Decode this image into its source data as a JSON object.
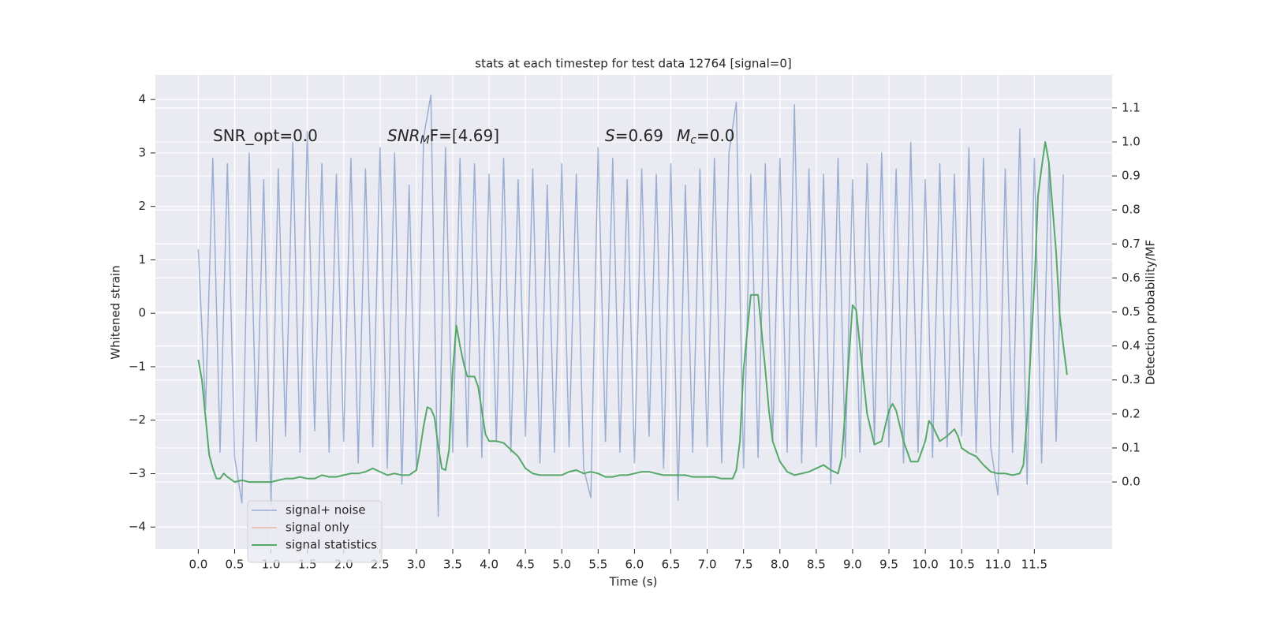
{
  "chart_data": {
    "type": "line",
    "title": "stats at each timestep for test data 12764 [signal=0]",
    "xlabel": "Time (s)",
    "ylabel": "Whitened strain",
    "y2label": "Detection probability/MF",
    "annotations": [
      {
        "parts": [
          "SNR_opt=0.0"
        ]
      },
      {
        "parts": [
          "SNR",
          "M",
          "F=[4.69]"
        ]
      },
      {
        "parts": [
          "S",
          "=0.69",
          "M",
          "c",
          "=0.0"
        ]
      }
    ],
    "xlim": [
      -0.59,
      12.57
    ],
    "ylim": [
      -4.41,
      4.46
    ],
    "y2lim": [
      -0.197,
      1.197
    ],
    "xticks": [
      {
        "value": 0,
        "label": "0.0"
      },
      0.5,
      {
        "value": 1,
        "label": "1.0"
      },
      1.5,
      {
        "value": 2,
        "label": "2.0"
      },
      2.5,
      {
        "value": 3,
        "label": "3.0"
      },
      3.5,
      {
        "value": 4,
        "label": "4.0"
      },
      4.5,
      {
        "value": 5,
        "label": "5.0"
      },
      5.5,
      {
        "value": 6,
        "label": "6.0"
      },
      6.5,
      {
        "value": 7,
        "label": "7.0"
      },
      7.5,
      {
        "value": 8,
        "label": "8.0"
      },
      8.5,
      {
        "value": 9,
        "label": "9.0"
      },
      9.5,
      {
        "value": 10,
        "label": "10.0"
      },
      10.5,
      {
        "value": 11,
        "label": "11.0"
      },
      11.5
    ],
    "yticks": [
      {
        "value": -4,
        "label": "−4"
      },
      {
        "value": -3,
        "label": "−3"
      },
      {
        "value": -2,
        "label": "−2"
      },
      {
        "value": -1,
        "label": "−1"
      },
      0,
      1,
      2,
      3,
      4
    ],
    "y2ticks": [
      {
        "value": 0,
        "label": "0.0"
      },
      0.1,
      0.2,
      0.3,
      0.4,
      0.5,
      0.6,
      0.7,
      0.8,
      0.9,
      {
        "value": 1,
        "label": "1.0"
      },
      1.1
    ],
    "grid": true,
    "legend": "lower left",
    "series": [
      {
        "name": "signal+ noise",
        "color": "#4c72b0",
        "axis": "y",
        "x": [
          0,
          0.1,
          0.2,
          0.3,
          0.4,
          0.5,
          0.6,
          0.7,
          0.8,
          0.9,
          1,
          1.1,
          1.2,
          1.3,
          1.4,
          1.5,
          1.6,
          1.7,
          1.8,
          1.9,
          2,
          2.1,
          2.2,
          2.3,
          2.4,
          2.5,
          2.6,
          2.7,
          2.8,
          2.9,
          3,
          3.1,
          3.2,
          3.3,
          3.4,
          3.5,
          3.6,
          3.7,
          3.8,
          3.9,
          4,
          4.1,
          4.2,
          4.3,
          4.4,
          4.5,
          4.6,
          4.7,
          4.8,
          4.9,
          5,
          5.1,
          5.2,
          5.3,
          5.4,
          5.5,
          5.6,
          5.7,
          5.8,
          5.9,
          6,
          6.1,
          6.2,
          6.3,
          6.4,
          6.5,
          6.6,
          6.7,
          6.8,
          6.9,
          7,
          7.1,
          7.2,
          7.3,
          7.4,
          7.5,
          7.6,
          7.7,
          7.8,
          7.9,
          8,
          8.1,
          8.2,
          8.3,
          8.4,
          8.5,
          8.6,
          8.7,
          8.8,
          8.9,
          9,
          9.1,
          9.2,
          9.3,
          9.4,
          9.5,
          9.6,
          9.7,
          9.8,
          9.9,
          10,
          10.1,
          10.2,
          10.3,
          10.4,
          10.5,
          10.6,
          10.7,
          10.8,
          10.9,
          11,
          11.1,
          11.2,
          11.3,
          11.4,
          11.5,
          11.6,
          11.7,
          11.8,
          11.9
        ],
        "values": [
          1.2,
          -1.8,
          2.9,
          -2.6,
          2.8,
          -2.7,
          -3.55,
          3.0,
          -2.4,
          2.5,
          -3.6,
          2.7,
          -2.3,
          3.2,
          -2.6,
          3.4,
          -2.2,
          2.8,
          -2.6,
          2.6,
          -2.4,
          2.9,
          -2.8,
          2.7,
          -2.5,
          3.1,
          -2.9,
          3.0,
          -3.2,
          2.4,
          -2.9,
          3.3,
          4.08,
          -3.8,
          3.1,
          -2.6,
          2.9,
          -2.5,
          2.8,
          -2.7,
          2.6,
          -2.4,
          2.9,
          -2.6,
          2.5,
          -2.3,
          2.7,
          -2.8,
          2.4,
          -2.6,
          2.8,
          -2.5,
          2.6,
          -2.9,
          -3.45,
          3.1,
          -2.4,
          2.9,
          -2.6,
          2.5,
          -2.8,
          2.7,
          -2.3,
          2.6,
          -2.9,
          2.8,
          -3.5,
          2.4,
          -2.6,
          2.7,
          -2.5,
          2.9,
          -2.8,
          3.0,
          3.95,
          -2.9,
          2.6,
          -2.7,
          2.8,
          -2.4,
          2.9,
          -2.6,
          3.9,
          -2.8,
          2.7,
          -2.5,
          2.6,
          -3.2,
          2.9,
          -2.7,
          2.5,
          -2.6,
          2.8,
          -2.4,
          3.0,
          -2.5,
          2.7,
          -2.8,
          3.2,
          -2.6,
          2.5,
          -2.7,
          2.8,
          -2.5,
          2.6,
          -2.3,
          3.1,
          -2.6,
          2.9,
          -2.5,
          -3.4,
          2.7,
          -2.6,
          3.45,
          -3.2,
          2.9,
          -2.8,
          2.8,
          -2.4,
          2.6
        ]
      },
      {
        "name": "signal only",
        "color": "#dd8452",
        "axis": "y",
        "x": [],
        "values": []
      },
      {
        "name": "signal statistics",
        "color": "#55a868",
        "axis": "y2",
        "x": [
          0,
          0.05,
          0.1,
          0.15,
          0.2,
          0.25,
          0.3,
          0.35,
          0.4,
          0.5,
          0.6,
          0.7,
          0.8,
          0.9,
          1,
          1.1,
          1.2,
          1.3,
          1.4,
          1.5,
          1.6,
          1.7,
          1.8,
          1.9,
          2,
          2.1,
          2.2,
          2.3,
          2.4,
          2.5,
          2.6,
          2.7,
          2.8,
          2.9,
          3,
          3.05,
          3.1,
          3.15,
          3.2,
          3.25,
          3.3,
          3.35,
          3.4,
          3.45,
          3.5,
          3.55,
          3.6,
          3.65,
          3.7,
          3.75,
          3.8,
          3.85,
          3.9,
          3.95,
          4,
          4.1,
          4.2,
          4.3,
          4.4,
          4.5,
          4.6,
          4.7,
          4.8,
          4.9,
          5,
          5.1,
          5.2,
          5.3,
          5.4,
          5.5,
          5.6,
          5.7,
          5.8,
          5.9,
          6,
          6.1,
          6.2,
          6.3,
          6.4,
          6.5,
          6.6,
          6.7,
          6.8,
          6.9,
          7,
          7.1,
          7.2,
          7.3,
          7.35,
          7.4,
          7.45,
          7.5,
          7.6,
          7.7,
          7.75,
          7.8,
          7.85,
          7.9,
          8,
          8.1,
          8.2,
          8.3,
          8.4,
          8.5,
          8.6,
          8.7,
          8.8,
          8.85,
          8.9,
          9,
          9.05,
          9.1,
          9.2,
          9.3,
          9.4,
          9.5,
          9.55,
          9.6,
          9.7,
          9.8,
          9.9,
          10,
          10.05,
          10.1,
          10.2,
          10.3,
          10.4,
          10.45,
          10.5,
          10.6,
          10.7,
          10.8,
          10.9,
          11,
          11.1,
          11.2,
          11.3,
          11.35,
          11.4,
          11.5,
          11.55,
          11.6,
          11.65,
          11.7,
          11.8,
          11.85,
          11.9,
          11.95
        ],
        "values": [
          0.36,
          0.3,
          0.19,
          0.08,
          0.04,
          0.01,
          0.01,
          0.025,
          0.015,
          0.0,
          0.005,
          0.0,
          0.0,
          0.0,
          0.0,
          0.005,
          0.01,
          0.01,
          0.015,
          0.01,
          0.01,
          0.02,
          0.015,
          0.015,
          0.02,
          0.025,
          0.025,
          0.03,
          0.04,
          0.03,
          0.02,
          0.025,
          0.02,
          0.02,
          0.035,
          0.095,
          0.165,
          0.22,
          0.215,
          0.19,
          0.105,
          0.04,
          0.035,
          0.095,
          0.33,
          0.46,
          0.4,
          0.35,
          0.31,
          0.31,
          0.31,
          0.28,
          0.21,
          0.14,
          0.12,
          0.12,
          0.115,
          0.095,
          0.075,
          0.04,
          0.025,
          0.02,
          0.02,
          0.02,
          0.02,
          0.03,
          0.035,
          0.025,
          0.03,
          0.025,
          0.015,
          0.015,
          0.02,
          0.02,
          0.025,
          0.03,
          0.03,
          0.025,
          0.02,
          0.02,
          0.02,
          0.02,
          0.015,
          0.015,
          0.015,
          0.015,
          0.01,
          0.01,
          0.01,
          0.035,
          0.12,
          0.33,
          0.55,
          0.55,
          0.44,
          0.33,
          0.21,
          0.12,
          0.06,
          0.03,
          0.02,
          0.025,
          0.03,
          0.04,
          0.05,
          0.035,
          0.025,
          0.07,
          0.21,
          0.52,
          0.505,
          0.4,
          0.2,
          0.11,
          0.12,
          0.21,
          0.23,
          0.21,
          0.12,
          0.06,
          0.06,
          0.12,
          0.18,
          0.165,
          0.12,
          0.135,
          0.155,
          0.135,
          0.1,
          0.085,
          0.075,
          0.05,
          0.03,
          0.025,
          0.025,
          0.02,
          0.025,
          0.05,
          0.19,
          0.58,
          0.84,
          0.925,
          1.0,
          0.94,
          0.675,
          0.49,
          0.4,
          0.315
        ]
      }
    ]
  }
}
